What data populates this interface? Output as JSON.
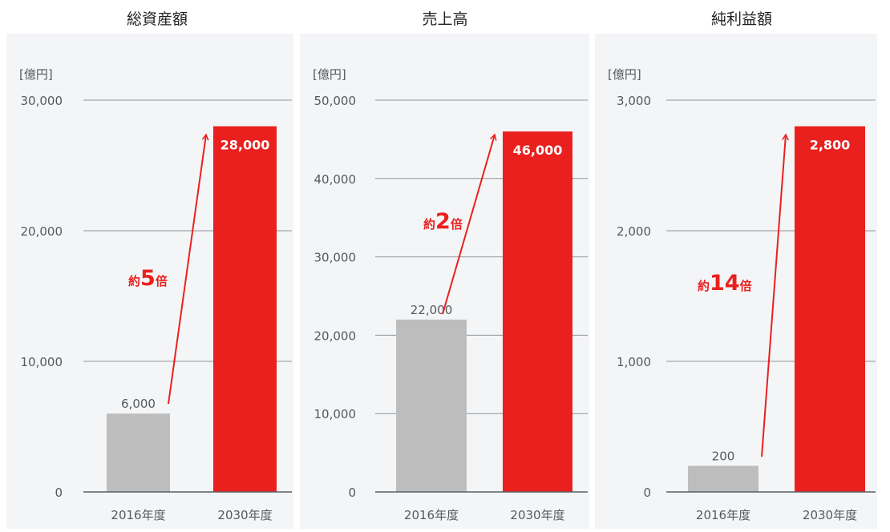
{
  "colors": {
    "panel_bg": "#f4f5f7",
    "gridline": "#8f959b",
    "baseline": "#5a5f63",
    "axis_text": "#555a5e",
    "bar_2016": "#bdbdbd",
    "bar_2030": "#e9201e",
    "accent": "#e9201e",
    "title_text": "#222222"
  },
  "chart_data": [
    {
      "type": "bar",
      "title": "総資産額",
      "ylabel": "[億円]",
      "categories": [
        "2016年度",
        "2030年度"
      ],
      "values": [
        6000,
        28000
      ],
      "value_labels": [
        "6,000",
        "28,000"
      ],
      "ylim": [
        0,
        30000
      ],
      "yticks": [
        0,
        10000,
        20000,
        30000
      ],
      "ytick_labels": [
        "0",
        "10,000",
        "20,000",
        "30,000"
      ],
      "annotation": {
        "prefix": "約",
        "number": "5",
        "suffix": "倍"
      },
      "grid": true
    },
    {
      "type": "bar",
      "title": "売上高",
      "ylabel": "[億円]",
      "categories": [
        "2016年度",
        "2030年度"
      ],
      "values": [
        22000,
        46000
      ],
      "value_labels": [
        "22,000",
        "46,000"
      ],
      "ylim": [
        0,
        50000
      ],
      "yticks": [
        0,
        10000,
        20000,
        30000,
        40000,
        50000
      ],
      "ytick_labels": [
        "0",
        "10,000",
        "20,000",
        "30,000",
        "40,000",
        "50,000"
      ],
      "annotation": {
        "prefix": "約",
        "number": "2",
        "suffix": "倍"
      },
      "grid": true
    },
    {
      "type": "bar",
      "title": "純利益額",
      "ylabel": "[億円]",
      "categories": [
        "2016年度",
        "2030年度"
      ],
      "values": [
        200,
        2800
      ],
      "value_labels": [
        "200",
        "2,800"
      ],
      "ylim": [
        0,
        3000
      ],
      "yticks": [
        0,
        1000,
        2000,
        3000
      ],
      "ytick_labels": [
        "0",
        "1,000",
        "2,000",
        "3,000"
      ],
      "annotation": {
        "prefix": "約",
        "number": "14",
        "suffix": "倍"
      },
      "grid": true
    }
  ]
}
